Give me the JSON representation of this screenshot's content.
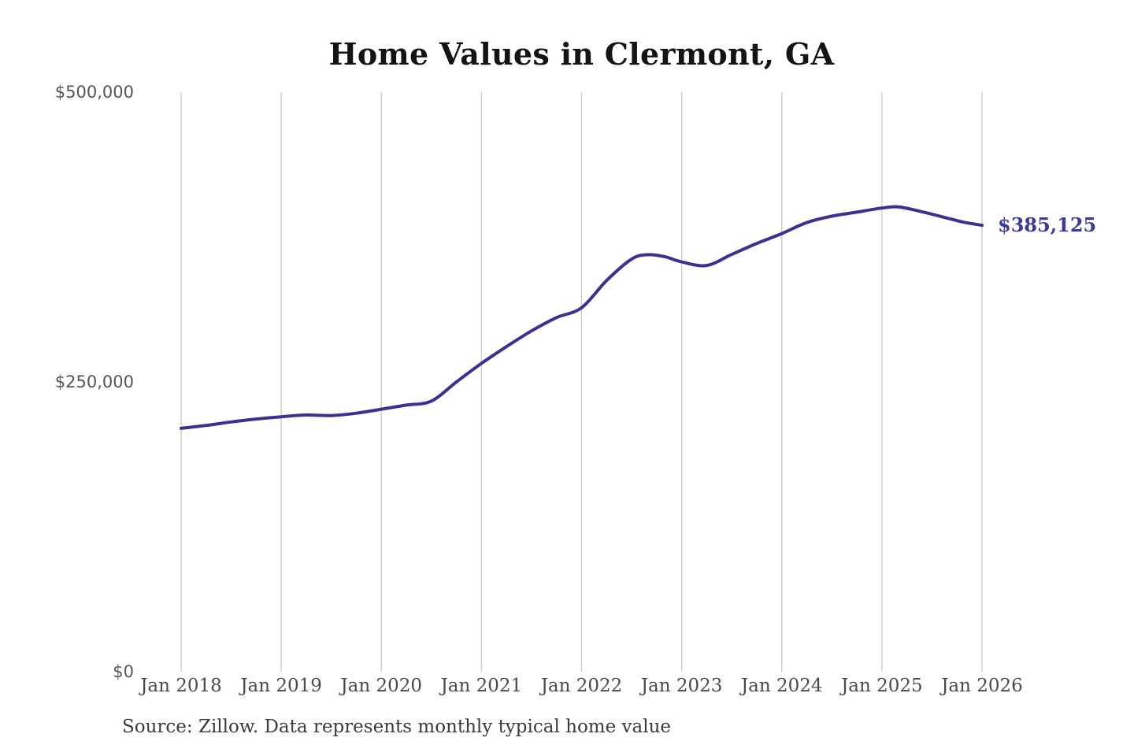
{
  "title": "Home Values in Clermont, GA",
  "source_note": "Source: Zillow. Data represents monthly typical home value",
  "chart_data": {
    "type": "line",
    "title": "Home Values in Clermont, GA",
    "xlabel": "",
    "ylabel": "",
    "xlim": [
      2018,
      2026
    ],
    "ylim": [
      0,
      500000
    ],
    "grid": "vertical-only",
    "grid_color": "#cccccc",
    "line_color": "#3a3292",
    "line_width": 4,
    "legend": "none",
    "x_ticks": [
      {
        "label": "Jan 2018",
        "value": 2018
      },
      {
        "label": "Jan 2019",
        "value": 2019
      },
      {
        "label": "Jan 2020",
        "value": 2020
      },
      {
        "label": "Jan 2021",
        "value": 2021
      },
      {
        "label": "Jan 2022",
        "value": 2022
      },
      {
        "label": "Jan 2023",
        "value": 2023
      },
      {
        "label": "Jan 2024",
        "value": 2024
      },
      {
        "label": "Jan 2025",
        "value": 2025
      },
      {
        "label": "Jan 2026",
        "value": 2026
      }
    ],
    "y_ticks": [
      {
        "label": "$500,000",
        "value": 500000
      },
      {
        "label": "$250,000",
        "value": 250000
      },
      {
        "label": "$0",
        "value": 0
      }
    ],
    "end_label": {
      "text": "$385,125",
      "value": 385125,
      "color": "#3a3a9b"
    },
    "points": [
      [
        2018.0,
        210000
      ],
      [
        2018.25,
        212500
      ],
      [
        2018.5,
        215500
      ],
      [
        2018.75,
        218000
      ],
      [
        2019.0,
        220000
      ],
      [
        2019.25,
        221500
      ],
      [
        2019.5,
        221000
      ],
      [
        2019.75,
        223000
      ],
      [
        2020.0,
        226500
      ],
      [
        2020.25,
        230000
      ],
      [
        2020.5,
        233500
      ],
      [
        2020.75,
        250000
      ],
      [
        2021.0,
        266000
      ],
      [
        2021.25,
        280500
      ],
      [
        2021.5,
        294000
      ],
      [
        2021.75,
        305500
      ],
      [
        2022.0,
        314000
      ],
      [
        2022.25,
        337500
      ],
      [
        2022.5,
        356000
      ],
      [
        2022.667,
        359800
      ],
      [
        2022.833,
        358000
      ],
      [
        2023.0,
        353500
      ],
      [
        2023.25,
        350500
      ],
      [
        2023.5,
        360000
      ],
      [
        2023.75,
        369500
      ],
      [
        2024.0,
        378000
      ],
      [
        2024.25,
        387500
      ],
      [
        2024.5,
        393000
      ],
      [
        2024.75,
        396500
      ],
      [
        2025.0,
        400000
      ],
      [
        2025.167,
        401000
      ],
      [
        2025.417,
        396500
      ],
      [
        2025.667,
        391000
      ],
      [
        2025.833,
        387500
      ],
      [
        2026.0,
        385125
      ]
    ]
  }
}
